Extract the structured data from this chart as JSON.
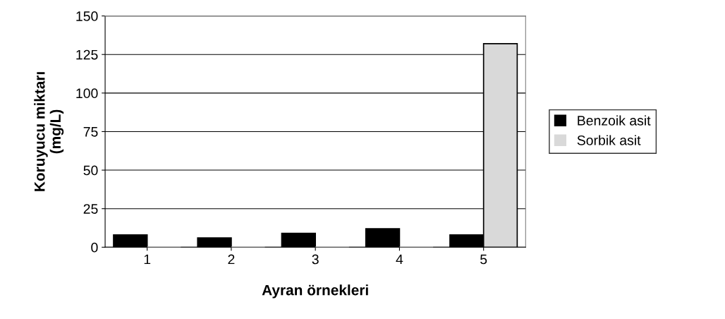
{
  "chart_data": {
    "type": "bar",
    "xlabel": "Ayran örnekleri",
    "ylabel": "Koruyucu miktarı\n(mg/L)",
    "categories": [
      "1",
      "2",
      "3",
      "4",
      "5"
    ],
    "series": [
      {
        "name": "Benzoik asit",
        "color": "#000000",
        "values": [
          8,
          6,
          9,
          12,
          8
        ]
      },
      {
        "name": "Sorbik asit",
        "color": "#d9d9d9",
        "values": [
          0,
          0,
          0,
          0,
          132
        ]
      }
    ],
    "ylim": [
      0,
      150
    ],
    "yticks": [
      0,
      25,
      50,
      75,
      100,
      125,
      150
    ],
    "grid": "y",
    "legend": "right"
  }
}
